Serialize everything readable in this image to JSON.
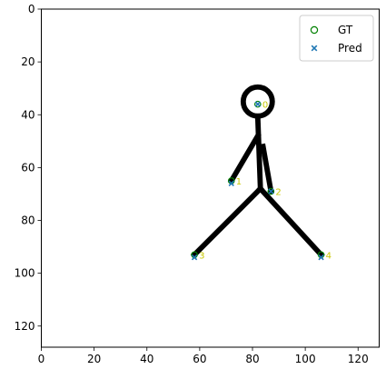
{
  "chart_data": {
    "type": "scatter",
    "image_size": [
      128,
      128
    ],
    "xlim": [
      0,
      128
    ],
    "ylim": [
      128,
      0
    ],
    "xticks": [
      0,
      20,
      40,
      60,
      80,
      100,
      120
    ],
    "yticks": [
      0,
      20,
      40,
      60,
      80,
      100,
      120
    ],
    "grid": false,
    "legend_position": "top-right",
    "series": [
      {
        "name": "GT",
        "marker": "open-circle",
        "color": "#008000",
        "points": [
          [
            82,
            36
          ],
          [
            72,
            65
          ],
          [
            87,
            69
          ],
          [
            58,
            93
          ],
          [
            106,
            93
          ]
        ]
      },
      {
        "name": "Pred",
        "marker": "x",
        "color": "#1f77b4",
        "points": [
          [
            82,
            36
          ],
          [
            72,
            66
          ],
          [
            87,
            69
          ],
          [
            58,
            94
          ],
          [
            106,
            94
          ]
        ]
      }
    ],
    "keypoint_labels": [
      "0",
      "1",
      "2",
      "3",
      "4"
    ],
    "label_color": "#c8c800",
    "background_figure": "stick-figure",
    "stick_color": "#000000"
  }
}
